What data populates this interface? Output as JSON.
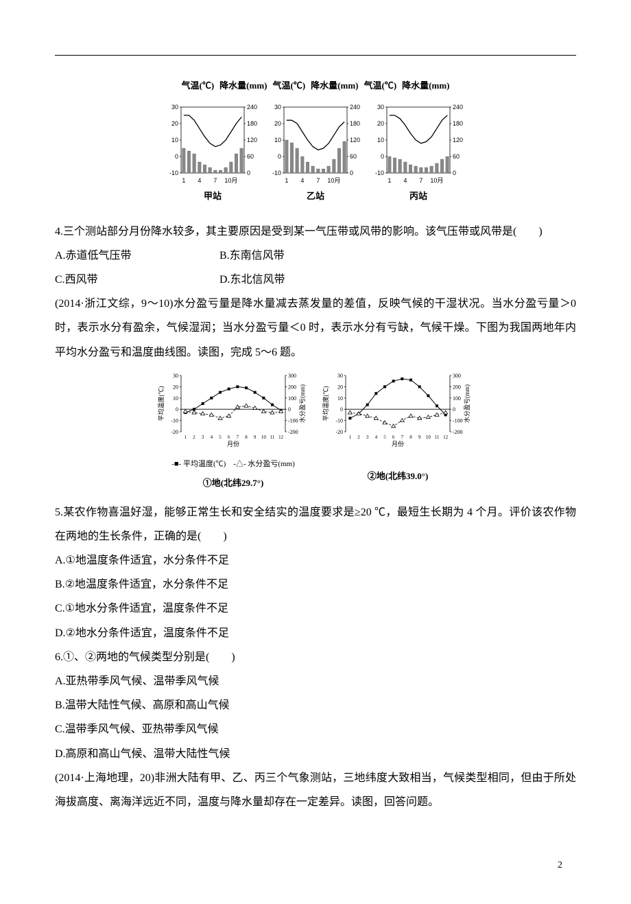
{
  "page": {
    "number": "2"
  },
  "chart_header": {
    "temp": "气温(℃)",
    "precip": "降水量(mm)"
  },
  "climographs": {
    "stations": [
      "甲站",
      "乙站",
      "丙站"
    ],
    "temp_axis": {
      "min": -10,
      "max": 30,
      "ticks": [
        -10,
        0,
        10,
        20,
        30
      ]
    },
    "precip_axis": {
      "min": 0,
      "max": 240,
      "ticks": [
        0,
        60,
        120,
        180,
        240
      ]
    },
    "x_ticks": [
      "1",
      "4",
      "7",
      "10月"
    ],
    "bar_color": "#888888",
    "line_color": "#000000",
    "grid_color": "#000000",
    "bg": "#ffffff",
    "data": [
      {
        "precip": [
          90,
          80,
          70,
          40,
          30,
          20,
          10,
          10,
          20,
          40,
          70,
          90
        ],
        "temp": [
          25,
          25,
          22,
          17,
          12,
          8,
          6,
          7,
          10,
          15,
          20,
          24
        ]
      },
      {
        "precip": [
          120,
          110,
          90,
          60,
          40,
          25,
          15,
          15,
          25,
          50,
          90,
          115
        ],
        "temp": [
          22,
          22,
          20,
          15,
          10,
          6,
          4,
          5,
          8,
          13,
          18,
          21
        ]
      },
      {
        "precip": [
          60,
          55,
          50,
          40,
          30,
          25,
          20,
          20,
          25,
          35,
          50,
          60
        ],
        "temp": [
          25,
          25,
          23,
          19,
          14,
          10,
          8,
          9,
          12,
          17,
          22,
          25
        ]
      }
    ]
  },
  "q4": {
    "stem": "4.三个测站部分月份降水较多，其主要原因是受到某一气压带或风带的影响。该气压带或风带是(　　)",
    "A": "A.赤道低气压带",
    "B": "B.东南信风带",
    "C": "C.西风带",
    "D": "D.东北信风带"
  },
  "intro56": {
    "p1": "(2014·浙江文综，9～10)水分盈亏量是降水量减去蒸发量的差值，反映气候的干湿状况。当水分盈亏量＞0 时，表示水分有盈余，气候湿润；当水分盈亏量＜0 时，表示水分有亏缺，气候干燥。下图为我国两地年内平均水分盈亏和温度曲线图。读图，完成 5～6 题。"
  },
  "dualchart": {
    "left_caption": "①地(北纬29.7°)",
    "right_caption": "②地(北纬39.0°)",
    "legend": "-■- 平均温度(℃)　-△- 水分盈亏(mm)",
    "y_left_label": "平均温度(℃)",
    "y_right_label": "水分盈亏(mm)",
    "x_label": "月份",
    "temp_axis": {
      "ticks": [
        -20,
        -10,
        0,
        10,
        20,
        30
      ]
    },
    "balance_axis": {
      "ticks": [
        -200,
        -100,
        0,
        100,
        200,
        300
      ]
    },
    "x_ticks": [
      "1",
      "2",
      "3",
      "4",
      "5",
      "6",
      "7",
      "8",
      "9",
      "10",
      "11",
      "12"
    ],
    "temp_color": "#000000",
    "balance_color": "#000000",
    "bg": "#ffffff",
    "left": {
      "temp": [
        -3,
        0,
        5,
        10,
        15,
        18,
        20,
        19,
        15,
        10,
        4,
        -1
      ],
      "balance": [
        -20,
        -30,
        -40,
        -50,
        -80,
        -60,
        20,
        30,
        10,
        -20,
        -30,
        -20
      ]
    },
    "right": {
      "temp": [
        -8,
        -4,
        4,
        14,
        20,
        25,
        27,
        26,
        20,
        12,
        3,
        -5
      ],
      "balance": [
        -30,
        -40,
        -60,
        -80,
        -120,
        -150,
        -100,
        -60,
        -80,
        -70,
        -50,
        -30
      ]
    }
  },
  "q5": {
    "stem": "5.某农作物喜温好湿，能够正常生长和安全结实的温度要求是≥20 ℃，最短生长期为 4 个月。评价该农作物在两地的生长条件，正确的是(　　)",
    "A": "A.①地温度条件适宜，水分条件不足",
    "B": "B.②地温度条件适宜，水分条件不足",
    "C": "C.①地水分条件适宜，温度条件不足",
    "D": "D.②地水分条件适宜，温度条件不足"
  },
  "q6": {
    "stem": "6.①、②两地的气候类型分别是(　　)",
    "A": "A.亚热带季风气候、温带季风气候",
    "B": "B.温带大陆性气候、高原和高山气候",
    "C": "C.温带季风气候、亚热带季风气候",
    "D": "D.高原和高山气候、温带大陆性气候"
  },
  "intro7": {
    "p1": "(2014·上海地理，20)非洲大陆有甲、乙、丙三个气象测站，三地纬度大致相当，气候类型相同，但由于所处海拔高度、离海洋远近不同，温度与降水量却存在一定差异。读图，回答问题。"
  }
}
